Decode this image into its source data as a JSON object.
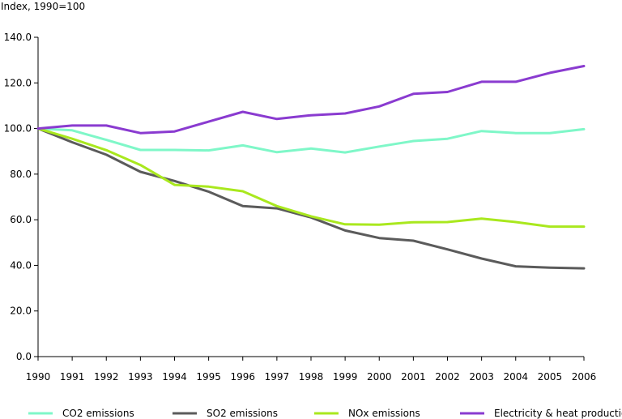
{
  "chart_data": {
    "type": "line",
    "ylabel": "Index, 1990=100",
    "x": [
      "1990",
      "1991",
      "1992",
      "1993",
      "1994",
      "1995",
      "1996",
      "1997",
      "1998",
      "1999",
      "2000",
      "2001",
      "2002",
      "2003",
      "2004",
      "2005",
      "2006"
    ],
    "ylim": [
      0,
      140
    ],
    "yticks": [
      "0.0",
      "20.0",
      "40.0",
      "60.0",
      "80.0",
      "100.0",
      "120.0",
      "140.0"
    ],
    "grid": false,
    "legend_position": "bottom",
    "series": [
      {
        "name": "CO2 emissions",
        "color": "#7ff7c8",
        "values": [
          100.0,
          99.2,
          95.0,
          90.6,
          90.6,
          90.4,
          92.6,
          89.6,
          91.2,
          89.5,
          92.1,
          94.5,
          95.5,
          98.9,
          98.0,
          98.0,
          99.7
        ]
      },
      {
        "name": "SO2 emissions",
        "color": "#5b5b5b",
        "values": [
          100.0,
          94.0,
          88.5,
          81.0,
          77.0,
          72.3,
          66.0,
          65.0,
          61.0,
          55.3,
          52.0,
          50.8,
          47.0,
          43.0,
          39.6,
          39.0,
          38.7
        ]
      },
      {
        "name": "NOx emissions",
        "color": "#a9e81e",
        "values": [
          100.0,
          95.5,
          90.5,
          84.0,
          75.3,
          74.5,
          72.5,
          66.0,
          61.5,
          58.0,
          57.8,
          58.9,
          59.0,
          60.5,
          59.0,
          57.0,
          57.0
        ]
      },
      {
        "name": "Electricity & heat production",
        "color": "#8a3bd0",
        "values": [
          100.0,
          101.3,
          101.3,
          98.0,
          98.7,
          103.0,
          107.3,
          104.2,
          105.8,
          106.6,
          109.7,
          115.2,
          116.0,
          120.5,
          120.5,
          124.4,
          127.4
        ]
      }
    ]
  }
}
